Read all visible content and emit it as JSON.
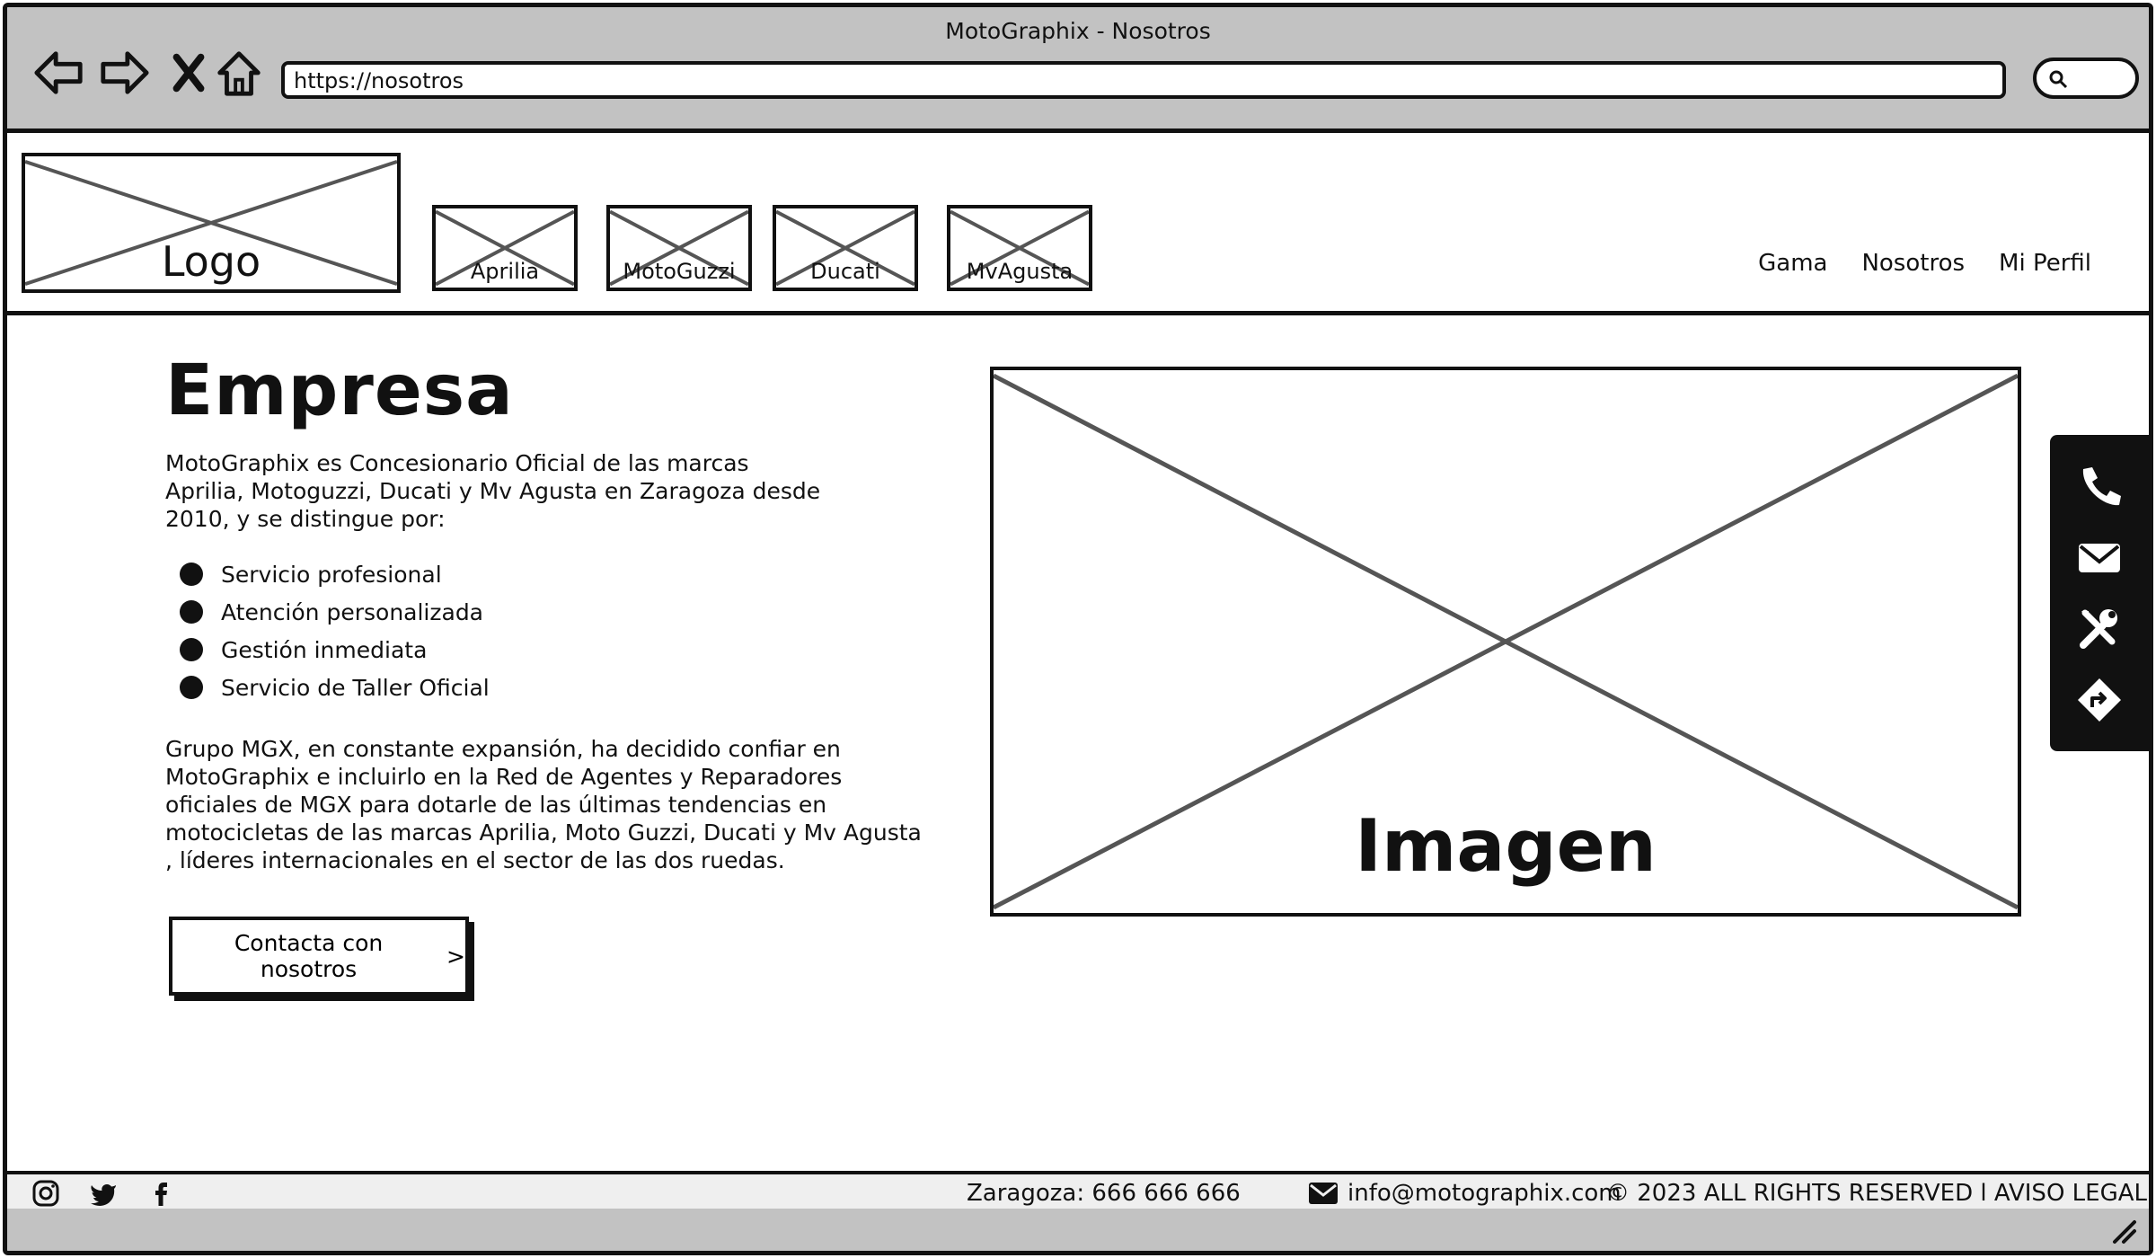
{
  "browser": {
    "window_title": "MotoGraphix - Nosotros",
    "url": "https://nosotros",
    "nav_icons": [
      "back-arrow-icon",
      "forward-arrow-icon",
      "close-icon",
      "home-icon"
    ],
    "search_icon": "search-icon"
  },
  "header": {
    "logo_label": "Logo",
    "brands": [
      {
        "label": "Aprilia"
      },
      {
        "label": "MotoGuzzi"
      },
      {
        "label": "Ducati"
      },
      {
        "label": "MvAgusta"
      }
    ],
    "nav": [
      {
        "label": "Gama"
      },
      {
        "label": "Nosotros"
      },
      {
        "label": "Mi Perfil"
      }
    ]
  },
  "content": {
    "title": "Empresa",
    "intro": "MotoGraphix es Concesionario Oficial de las marcas Aprilia, Motoguzzi, Ducati y Mv Agusta en Zaragoza desde 2010, y se distingue por:",
    "features": [
      "Servicio profesional",
      "Atención personalizada",
      "Gestión inmediata",
      "Servicio de Taller Oficial"
    ],
    "group_text": "Grupo MGX, en constante expansión, ha decidido confiar en MotoGraphix e incluirlo en la Red de Agentes y Reparadores oficiales de MGX para dotarle de las últimas tendencias en motocicletas de las marcas Aprilia, Moto Guzzi, Ducati y Mv Agusta , líderes internacionales en el sector de las dos ruedas.",
    "contact_button": "Contacta con nosotros",
    "contact_chevron": ">",
    "image_label": "Imagen"
  },
  "side_toolbar": {
    "icons": [
      "phone-icon",
      "mail-icon",
      "tools-icon",
      "directions-icon"
    ]
  },
  "footer": {
    "social_icons": [
      "instagram-icon",
      "twitter-icon",
      "facebook-icon"
    ],
    "phone": "Zaragoza: 666 666 666",
    "email": "info@motographix.com",
    "rights": "© 2023 ALL RIGHTS RESERVED  l AVISO LEGAL"
  },
  "colors": {
    "chrome": "#c2c2c2",
    "ink": "#111111",
    "placeholder_cross": "#555555",
    "footer_bg": "#efefef"
  }
}
